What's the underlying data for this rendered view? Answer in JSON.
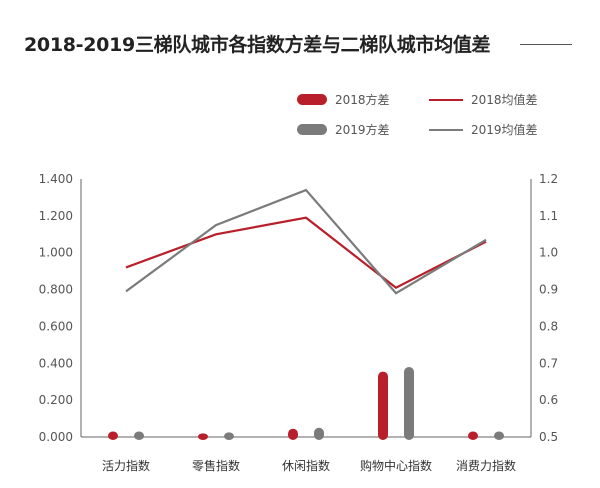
{
  "title": "2018-2019三梯队城市各指数方差与二梯队城市均值差",
  "legend": {
    "var2018": "2018方差",
    "mean2018": "2018均值差",
    "var2019": "2019方差",
    "mean2019": "2019均值差"
  },
  "colors": {
    "c2018": "#b91f2a",
    "c2019": "#7b7b7b"
  },
  "chart_data": {
    "type": "bar",
    "categories": [
      "活力指数",
      "零售指数",
      "休闲指数",
      "购物中心指数",
      "消费力指数"
    ],
    "series": [
      {
        "name": "2018方差",
        "kind": "bar",
        "axis": "left",
        "values": [
          0.03,
          0.02,
          0.045,
          0.355,
          0.03
        ]
      },
      {
        "name": "2019方差",
        "kind": "bar",
        "axis": "left",
        "values": [
          0.03,
          0.025,
          0.05,
          0.38,
          0.03
        ]
      },
      {
        "name": "2018均值差",
        "kind": "line",
        "axis": "right",
        "values": [
          0.96,
          1.05,
          1.095,
          0.905,
          1.03
        ]
      },
      {
        "name": "2019均值差",
        "kind": "line",
        "axis": "right",
        "values": [
          0.895,
          1.075,
          1.17,
          0.89,
          1.035
        ]
      }
    ],
    "ylim_left": [
      0,
      1.4
    ],
    "ylim_right": [
      0.5,
      1.2
    ],
    "yticks_left": [
      "0.000",
      "0.200",
      "0.400",
      "0.600",
      "0.800",
      "1.000",
      "1.200",
      "1.400"
    ],
    "yticks_right": [
      "0.5",
      "0.6",
      "0.7",
      "0.8",
      "0.9",
      "1.0",
      "1.1",
      "1.2"
    ],
    "grid": false,
    "legend_position": "top-right"
  }
}
